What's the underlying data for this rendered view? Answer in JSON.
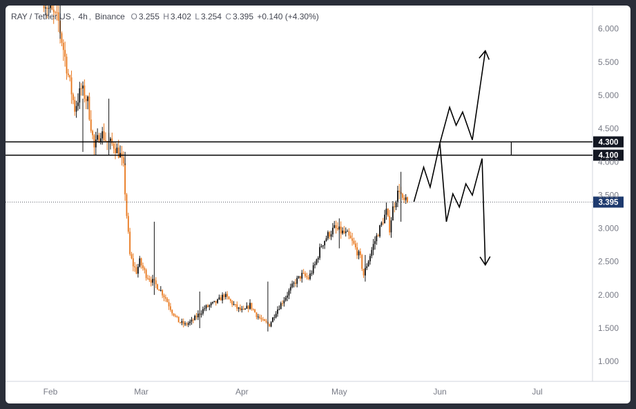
{
  "header": {
    "symbol": "RAY / Tether US",
    "interval": "4h",
    "exchange": "Binance",
    "open_label": "O",
    "open": "3.255",
    "high_label": "H",
    "high": "3.402",
    "low_label": "L",
    "low": "3.254",
    "close_label": "C",
    "close": "3.395",
    "change": "+0.140 (+4.30%)"
  },
  "colors": {
    "up": "#111111",
    "down": "#e8761a",
    "grid_text": "#787b86",
    "price_badge": "#131722",
    "last_badge": "#1e3a6e"
  },
  "chart_data": {
    "type": "candlestick",
    "y_axis": {
      "ticks": [
        "1.000",
        "1.500",
        "2.000",
        "2.500",
        "3.000",
        "3.500",
        "4.000",
        "4.500",
        "5.000",
        "5.500",
        "6.000"
      ],
      "ylim": [
        0.7,
        6.35
      ]
    },
    "x_axis": {
      "ticks": [
        "Feb",
        "Mar",
        "Apr",
        "May",
        "Jun",
        "Jul"
      ]
    },
    "price_path": [
      [
        -2,
        6.5
      ],
      [
        0,
        6.3
      ],
      [
        3,
        6.1
      ],
      [
        6,
        5.3
      ],
      [
        8,
        4.8
      ],
      [
        10,
        5.1
      ],
      [
        12,
        4.9
      ],
      [
        14,
        4.2
      ],
      [
        16,
        4.45
      ],
      [
        18,
        4.3
      ],
      [
        20,
        4.25
      ],
      [
        22,
        4.1
      ],
      [
        23,
        3.9
      ],
      [
        24,
        3.2
      ],
      [
        25,
        2.6
      ],
      [
        26,
        2.45
      ],
      [
        27,
        2.35
      ],
      [
        28,
        2.5
      ],
      [
        30,
        2.3
      ],
      [
        32,
        2.2
      ],
      [
        34,
        2.1
      ],
      [
        36,
        1.95
      ],
      [
        38,
        1.75
      ],
      [
        40,
        1.6
      ],
      [
        42,
        1.55
      ],
      [
        44,
        1.6
      ],
      [
        46,
        1.7
      ],
      [
        48,
        1.8
      ],
      [
        50,
        1.85
      ],
      [
        52,
        1.9
      ],
      [
        54,
        2.0
      ],
      [
        56,
        1.9
      ],
      [
        58,
        1.8
      ],
      [
        60,
        1.75
      ],
      [
        62,
        1.85
      ],
      [
        64,
        1.7
      ],
      [
        66,
        1.6
      ],
      [
        68,
        1.55
      ],
      [
        70,
        1.75
      ],
      [
        72,
        1.9
      ],
      [
        74,
        2.05
      ],
      [
        76,
        2.2
      ],
      [
        78,
        2.3
      ],
      [
        80,
        2.25
      ],
      [
        82,
        2.45
      ],
      [
        84,
        2.75
      ],
      [
        86,
        2.9
      ],
      [
        88,
        3.0
      ],
      [
        90,
        2.95
      ],
      [
        92,
        2.9
      ],
      [
        94,
        2.75
      ],
      [
        96,
        2.55
      ],
      [
        97,
        2.3
      ],
      [
        98,
        2.45
      ],
      [
        100,
        2.75
      ],
      [
        102,
        3.0
      ],
      [
        104,
        3.25
      ],
      [
        105,
        3.0
      ],
      [
        106,
        3.3
      ],
      [
        108,
        3.6
      ],
      [
        109,
        3.4
      ],
      [
        110,
        3.395
      ]
    ],
    "spikes": [
      {
        "day": 3,
        "high": 6.4,
        "low": 5.85
      },
      {
        "day": 10,
        "high": 4.95,
        "low": 4.15
      },
      {
        "day": 18,
        "high": 4.95,
        "low": 4.1
      },
      {
        "day": 23,
        "high": 4.15,
        "low": 3.95
      },
      {
        "day": 32,
        "high": 3.1,
        "low": 2.0
      },
      {
        "day": 46,
        "high": 2.05,
        "low": 1.5
      },
      {
        "day": 67,
        "high": 2.2,
        "low": 1.45
      },
      {
        "day": 89,
        "high": 3.15,
        "low": 2.7
      },
      {
        "day": 97,
        "high": 2.6,
        "low": 2.2
      },
      {
        "day": 108,
        "high": 3.85,
        "low": 3.1
      }
    ],
    "x_tick_days": [
      0,
      28,
      59,
      89,
      120,
      150
    ],
    "horizontal_levels": [
      {
        "label": "4.300",
        "value": 4.3
      },
      {
        "label": "4.100",
        "value": 4.1
      }
    ],
    "last_price": {
      "label": "3.395",
      "value": 3.395
    },
    "projection": [
      [
        112,
        3.4
      ],
      [
        115,
        3.92
      ],
      [
        117,
        3.62
      ],
      [
        120,
        4.28
      ],
      [
        122,
        3.1
      ],
      [
        124,
        3.52
      ],
      [
        126,
        3.32
      ],
      [
        128,
        3.67
      ],
      [
        130,
        3.5
      ],
      [
        133,
        4.05
      ],
      [
        134,
        2.45
      ]
    ],
    "projection_bull": [
      [
        120,
        4.28
      ],
      [
        123,
        4.82
      ],
      [
        125,
        4.55
      ],
      [
        127,
        4.75
      ],
      [
        130,
        4.33
      ],
      [
        134,
        5.67
      ]
    ],
    "level_box_end_day": 142
  }
}
